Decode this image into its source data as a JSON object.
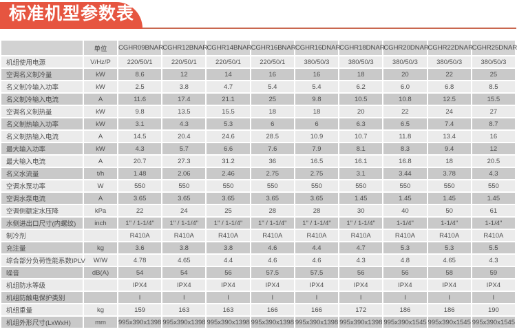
{
  "page": {
    "title": "标准机型参数表"
  },
  "colors": {
    "banner": "#e65540",
    "banner_line": "#c9674f",
    "header_bg": "#d2d2d2",
    "row_light": "#ebebeb",
    "row_dark": "#c9c9c9",
    "text": "#4e4e4e"
  },
  "table": {
    "corner_label": "",
    "unit_header": "单位",
    "models": [
      "CGHR09BNAR",
      "CGHR12BNAR",
      "CGHR14BNAR",
      "CGHR16BNAR",
      "CGHR16DNAR",
      "CGHR18DNAR",
      "CGHR20DNAR",
      "CGHR22DNAR",
      "CGHR25DNAR"
    ],
    "rows": [
      {
        "label": "机组使用电源",
        "unit": "V/Hz/P",
        "values": [
          "220/50/1",
          "220/50/1",
          "220/50/1",
          "220/50/1",
          "380/50/3",
          "380/50/3",
          "380/50/3",
          "380/50/3",
          "380/50/3"
        ]
      },
      {
        "label": "空调名义制冷量",
        "unit": "kW",
        "values": [
          "8.6",
          "12",
          "14",
          "16",
          "16",
          "18",
          "20",
          "22",
          "25"
        ]
      },
      {
        "label": "名义制冷输入功率",
        "unit": "kW",
        "values": [
          "2.5",
          "3.8",
          "4.7",
          "5.4",
          "5.4",
          "6.2",
          "6.0",
          "6.8",
          "8.5"
        ]
      },
      {
        "label": "名义制冷输入电流",
        "unit": "A",
        "values": [
          "11.6",
          "17.4",
          "21.1",
          "25",
          "9.8",
          "10.5",
          "10.8",
          "12.5",
          "15.5"
        ]
      },
      {
        "label": "空调名义制热量",
        "unit": "kW",
        "values": [
          "9.8",
          "13.5",
          "15.5",
          "18",
          "18",
          "20",
          "22",
          "24",
          "27"
        ]
      },
      {
        "label": "名义制热输入功率",
        "unit": "kW",
        "values": [
          "3.1",
          "4.3",
          "5.3",
          "6",
          "6",
          "6.3",
          "6.5",
          "7.4",
          "8.7"
        ]
      },
      {
        "label": "名义制热输入电流",
        "unit": "A",
        "values": [
          "14.5",
          "20.4",
          "24.6",
          "28.5",
          "10.9",
          "10.7",
          "11.8",
          "13.4",
          "16"
        ]
      },
      {
        "label": "最大输入功率",
        "unit": "kW",
        "values": [
          "4.3",
          "5.7",
          "6.6",
          "7.6",
          "7.9",
          "8.1",
          "8.3",
          "9.4",
          "12"
        ]
      },
      {
        "label": "最大输入电流",
        "unit": "A",
        "values": [
          "20.7",
          "27.3",
          "31.2",
          "36",
          "16.5",
          "16.1",
          "16.8",
          "18",
          "20.5"
        ]
      },
      {
        "label": "名义水流量",
        "unit": "t/h",
        "values": [
          "1.48",
          "2.06",
          "2.46",
          "2.75",
          "2.75",
          "3.1",
          "3.44",
          "3.78",
          "4.3"
        ]
      },
      {
        "label": "空调水泵功率",
        "unit": "W",
        "values": [
          "550",
          "550",
          "550",
          "550",
          "550",
          "550",
          "550",
          "550",
          "550"
        ]
      },
      {
        "label": "空调水泵电流",
        "unit": "A",
        "values": [
          "3.65",
          "3.65",
          "3.65",
          "3.65",
          "3.65",
          "1.45",
          "1.45",
          "1.45",
          "1.45"
        ]
      },
      {
        "label": "空调侧额定水压降",
        "unit": "kPa",
        "values": [
          "22",
          "24",
          "25",
          "28",
          "28",
          "30",
          "40",
          "50",
          "61"
        ]
      },
      {
        "label": "水侧进出口尺寸(内螺纹)",
        "unit": "inch",
        "values": [
          "1\" / 1-1/4\"",
          "1\" / 1-1/4\"",
          "1\" / 1-1/4\"",
          "1\" / 1-1/4\"",
          "1\" / 1-1/4\"",
          "1\" / 1-1/4\"",
          "1-1/4\"",
          "1-1/4\"",
          "1-1/4\""
        ]
      },
      {
        "label": "制冷剂",
        "unit": "",
        "values": [
          "R410A",
          "R410A",
          "R410A",
          "R410A",
          "R410A",
          "R410A",
          "R410A",
          "R410A",
          "R410A"
        ]
      },
      {
        "label": "充注量",
        "unit": "kg",
        "values": [
          "3.6",
          "3.8",
          "3.8",
          "4.6",
          "4.4",
          "4.7",
          "5.3",
          "5.3",
          "5.5"
        ]
      },
      {
        "label": "综合部分负荷性能系数IPLV",
        "unit": "W/W",
        "values": [
          "4.78",
          "4.65",
          "4.4",
          "4.6",
          "4.6",
          "4.3",
          "4.8",
          "4.65",
          "4.3"
        ]
      },
      {
        "label": "噪音",
        "unit": "dB(A)",
        "values": [
          "54",
          "54",
          "56",
          "57.5",
          "57.5",
          "56",
          "56",
          "58",
          "59"
        ]
      },
      {
        "label": "机组防水等级",
        "unit": "",
        "values": [
          "IPX4",
          "IPX4",
          "IPX4",
          "IPX4",
          "IPX4",
          "IPX4",
          "IPX4",
          "IPX4",
          "IPX4"
        ]
      },
      {
        "label": "机组防触电保护类别",
        "unit": "",
        "values": [
          "I",
          "I",
          "I",
          "I",
          "I",
          "I",
          "I",
          "I",
          "I"
        ]
      },
      {
        "label": "机组重量",
        "unit": "kg",
        "values": [
          "159",
          "163",
          "163",
          "166",
          "166",
          "172",
          "186",
          "186",
          "190"
        ]
      },
      {
        "label": "机组外形尺寸(LxWxH)",
        "unit": "mm",
        "values": [
          "995x390x1398",
          "995x390x1398",
          "995x390x1398",
          "995x390x1398",
          "995x390x1398",
          "995x390x1398",
          "995x390x1545",
          "995x390x1545",
          "995x390x1545"
        ]
      }
    ]
  }
}
